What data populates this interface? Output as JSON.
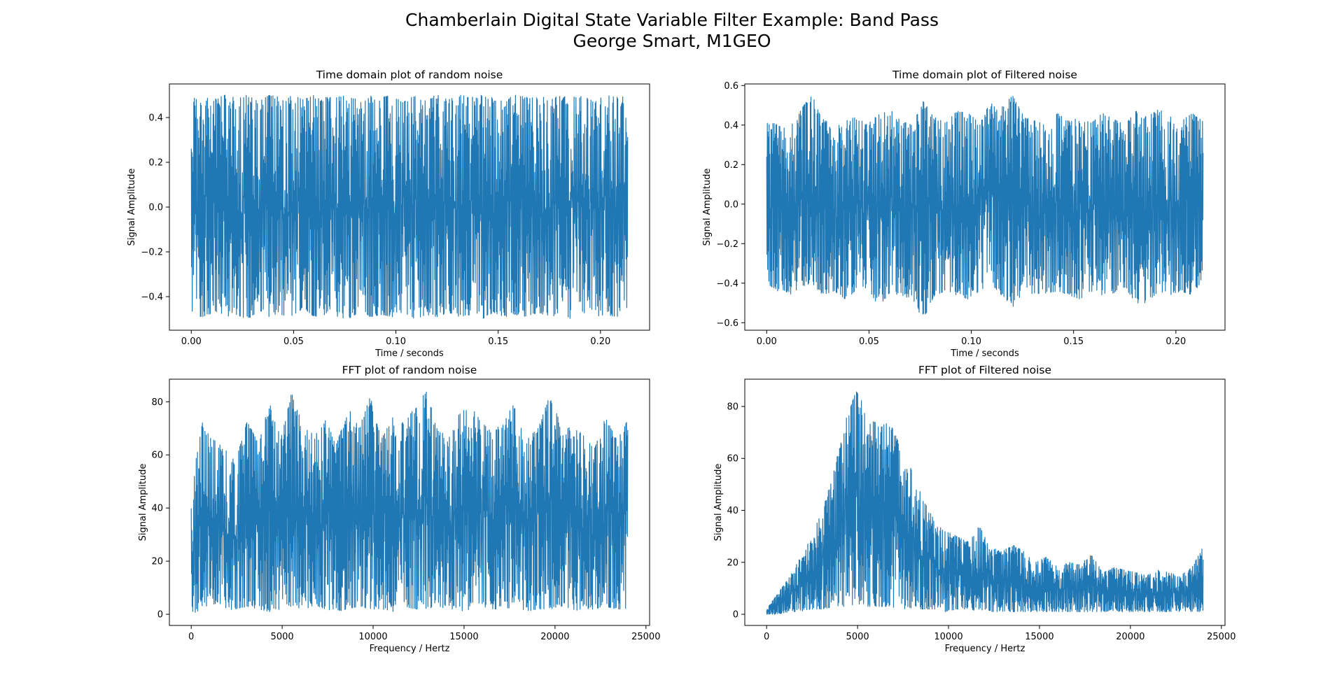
{
  "figure": {
    "title_line1": "Chamberlain Digital State Variable Filter Example: Band Pass",
    "title_line2": "George Smart, M1GEO"
  },
  "style": {
    "line_color": "#1f77b4",
    "axes_color": "#000000",
    "background": "#ffffff"
  },
  "chart_data": [
    {
      "id": "time-random",
      "type": "line",
      "title": "Time domain plot of random noise",
      "xlabel": "Time / seconds",
      "ylabel": "Signal Amplitude",
      "xlim": [
        -0.0107,
        0.224
      ],
      "ylim": [
        -0.55,
        0.55
      ],
      "xticks": [
        0.0,
        0.05,
        0.1,
        0.15,
        0.2
      ],
      "xtick_labels": [
        "0.00",
        "0.05",
        "0.10",
        "0.15",
        "0.20"
      ],
      "yticks": [
        -0.4,
        -0.2,
        0.0,
        0.2,
        0.4
      ],
      "ytick_labels": [
        "−0.4",
        "−0.2",
        "0.0",
        "0.2",
        "0.4"
      ],
      "series": [
        {
          "x_range": [
            0.0,
            0.2133
          ],
          "upper_envelope": [
            0.49,
            0.5,
            0.48,
            0.5,
            0.49,
            0.5,
            0.47,
            0.5,
            0.49,
            0.5,
            0.48,
            0.5,
            0.49,
            0.49,
            0.5,
            0.48,
            0.5,
            0.49,
            0.5,
            0.47,
            0.5,
            0.49,
            0.5,
            0.48,
            0.5,
            0.49,
            0.5,
            0.49,
            0.48,
            0.5,
            0.49,
            0.5,
            0.48,
            0.5,
            0.49,
            0.5,
            0.47,
            0.5,
            0.49,
            0.5
          ],
          "lower_envelope": [
            -0.48,
            -0.49,
            -0.47,
            -0.49,
            -0.48,
            -0.5,
            -0.47,
            -0.49,
            -0.48,
            -0.49,
            -0.45,
            -0.49,
            -0.48,
            -0.49,
            -0.5,
            -0.47,
            -0.49,
            -0.48,
            -0.49,
            -0.47,
            -0.5,
            -0.48,
            -0.49,
            -0.47,
            -0.49,
            -0.48,
            -0.5,
            -0.47,
            -0.49,
            -0.48,
            -0.49,
            -0.47,
            -0.49,
            -0.48,
            -0.5,
            -0.47,
            -0.49,
            -0.48,
            -0.49,
            -0.47
          ]
        }
      ]
    },
    {
      "id": "time-filtered",
      "type": "line",
      "title": "Time domain plot of Filtered noise",
      "xlabel": "Time / seconds",
      "ylabel": "Signal Amplitude",
      "xlim": [
        -0.0107,
        0.224
      ],
      "ylim": [
        -0.638,
        0.608
      ],
      "xticks": [
        0.0,
        0.05,
        0.1,
        0.15,
        0.2
      ],
      "xtick_labels": [
        "0.00",
        "0.05",
        "0.10",
        "0.15",
        "0.20"
      ],
      "yticks": [
        -0.6,
        -0.4,
        -0.2,
        0.0,
        0.2,
        0.4,
        0.6
      ],
      "ytick_labels": [
        "−0.6",
        "−0.4",
        "−0.2",
        "0.0",
        "0.2",
        "0.4",
        "0.6"
      ],
      "series": [
        {
          "x_range": [
            0.0,
            0.2133
          ],
          "upper_envelope": [
            0.42,
            0.4,
            0.38,
            0.47,
            0.56,
            0.44,
            0.38,
            0.42,
            0.45,
            0.4,
            0.46,
            0.48,
            0.42,
            0.4,
            0.52,
            0.44,
            0.41,
            0.47,
            0.46,
            0.42,
            0.51,
            0.49,
            0.55,
            0.44,
            0.42,
            0.4,
            0.46,
            0.42,
            0.44,
            0.41,
            0.46,
            0.43,
            0.4,
            0.47,
            0.44,
            0.48,
            0.45,
            0.42,
            0.46,
            0.42
          ],
          "lower_envelope": [
            -0.4,
            -0.44,
            -0.46,
            -0.42,
            -0.4,
            -0.46,
            -0.44,
            -0.48,
            -0.44,
            -0.42,
            -0.52,
            -0.45,
            -0.46,
            -0.48,
            -0.59,
            -0.46,
            -0.44,
            -0.46,
            -0.48,
            -0.44,
            -0.4,
            -0.46,
            -0.52,
            -0.44,
            -0.46,
            -0.45,
            -0.44,
            -0.46,
            -0.48,
            -0.44,
            -0.46,
            -0.45,
            -0.42,
            -0.5,
            -0.5,
            -0.44,
            -0.46,
            -0.44,
            -0.46,
            -0.38
          ]
        }
      ]
    },
    {
      "id": "fft-random",
      "type": "line",
      "title": "FFT plot of random noise",
      "xlabel": "Frequency / Hertz",
      "ylabel": "Signal Amplitude",
      "xlim": [
        -1200,
        25200
      ],
      "ylim": [
        -4.2,
        88.5
      ],
      "xticks": [
        0,
        5000,
        10000,
        15000,
        20000,
        25000
      ],
      "xtick_labels": [
        "0",
        "5000",
        "10000",
        "15000",
        "20000",
        "25000"
      ],
      "yticks": [
        0,
        20,
        40,
        60,
        80
      ],
      "ytick_labels": [
        "0",
        "20",
        "40",
        "60",
        "80"
      ],
      "series": [
        {
          "x_range": [
            0,
            24000
          ],
          "upper_envelope": [
            48,
            72,
            66,
            62,
            58,
            73,
            64,
            80,
            66,
            84,
            70,
            68,
            73,
            64,
            78,
            70,
            82,
            66,
            74,
            72,
            78,
            84,
            70,
            66,
            76,
            78,
            72,
            68,
            74,
            80,
            66,
            70,
            82,
            72,
            70,
            68,
            62,
            74,
            66,
            73
          ],
          "lower_envelope": [
            0,
            2,
            3,
            1,
            2,
            3,
            2,
            1,
            2,
            3,
            2,
            3,
            2,
            1,
            2,
            3,
            2,
            2,
            1,
            3,
            2,
            2,
            3,
            2,
            1,
            2,
            3,
            2,
            2,
            3,
            1,
            2,
            2,
            3,
            2,
            1,
            2,
            3,
            2,
            2
          ]
        }
      ]
    },
    {
      "id": "fft-filtered",
      "type": "line",
      "title": "FFT plot of Filtered noise",
      "xlabel": "Frequency / Hertz",
      "ylabel": "Signal Amplitude",
      "xlim": [
        -1200,
        25200
      ],
      "ylim": [
        -4.3,
        90.5
      ],
      "xticks": [
        0,
        5000,
        10000,
        15000,
        20000,
        25000
      ],
      "xtick_labels": [
        "0",
        "5000",
        "10000",
        "15000",
        "20000",
        "25000"
      ],
      "yticks": [
        0,
        20,
        40,
        60,
        80
      ],
      "ytick_labels": [
        "0",
        "20",
        "40",
        "60",
        "80"
      ],
      "series": [
        {
          "x_range": [
            0,
            24000
          ],
          "upper_envelope": [
            2,
            8,
            14,
            22,
            30,
            40,
            55,
            74,
            86,
            78,
            72,
            74,
            64,
            55,
            44,
            36,
            32,
            30,
            28,
            34,
            26,
            24,
            27,
            24,
            20,
            22,
            18,
            20,
            19,
            24,
            16,
            18,
            17,
            16,
            15,
            17,
            16,
            15,
            18,
            26
          ],
          "lower_envelope": [
            0,
            0,
            1,
            1,
            2,
            2,
            3,
            3,
            4,
            3,
            3,
            3,
            2,
            2,
            2,
            2,
            1,
            2,
            2,
            1,
            1,
            1,
            1,
            1,
            1,
            1,
            1,
            1,
            1,
            1,
            1,
            1,
            1,
            1,
            1,
            1,
            1,
            1,
            1,
            1
          ]
        }
      ]
    }
  ]
}
